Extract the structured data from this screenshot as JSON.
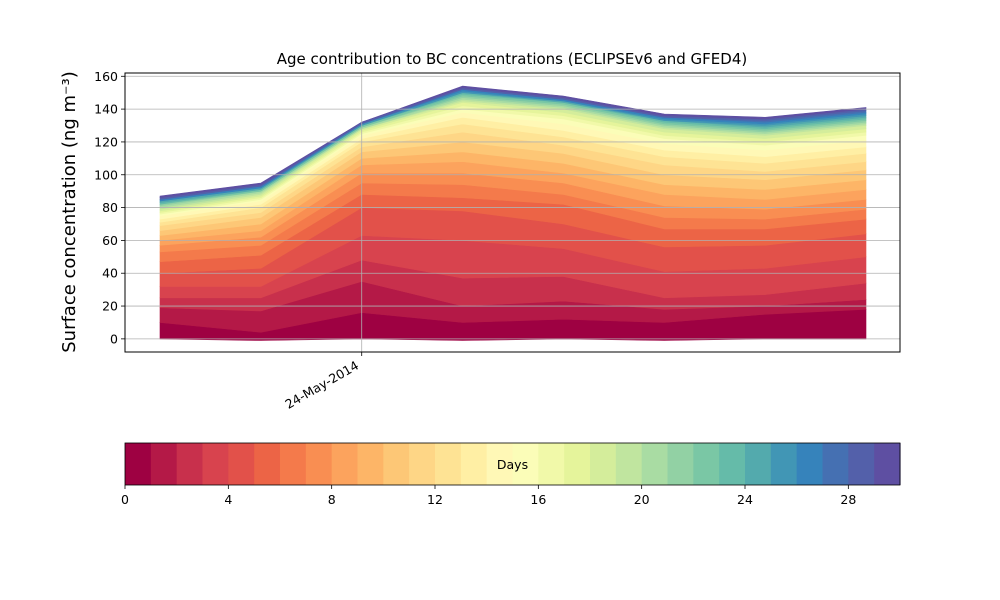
{
  "chart_data": {
    "type": "area",
    "title": "Age contribution to BC concentrations (ECLIPSEv6 and GFED4)",
    "ylabel": "Surface concentration (ng m⁻³)",
    "ylim": [
      -8,
      162
    ],
    "yticks": [
      0,
      20,
      40,
      60,
      80,
      100,
      120,
      140,
      160
    ],
    "xticks": [
      {
        "index": 2,
        "label": "24-May-2014"
      }
    ],
    "grid": true,
    "x": [
      0,
      1,
      2,
      3,
      4,
      5,
      6,
      7
    ],
    "stacked_boundaries": [
      [
        0,
        -1,
        0,
        -1,
        0,
        -1,
        0,
        0
      ],
      [
        10,
        4,
        16,
        10,
        12,
        10,
        15,
        18
      ],
      [
        19,
        17,
        35,
        20,
        23,
        18,
        20,
        24
      ],
      [
        25,
        25,
        48,
        37,
        38,
        25,
        27,
        34
      ],
      [
        32,
        32,
        63,
        60,
        55,
        41,
        43,
        50
      ],
      [
        40,
        43,
        80,
        78,
        70,
        56,
        57,
        64
      ],
      [
        47,
        51,
        88,
        86,
        82,
        67,
        67,
        73
      ],
      [
        53,
        57,
        95,
        94,
        88,
        74,
        73,
        79
      ],
      [
        57,
        62,
        101,
        101,
        95,
        81,
        79,
        85
      ],
      [
        60,
        66,
        106,
        108,
        101,
        88,
        85,
        91
      ],
      [
        63,
        70,
        110,
        114,
        107,
        94,
        91,
        97
      ],
      [
        66,
        74,
        114,
        120,
        113,
        100,
        97,
        103
      ],
      [
        69,
        77,
        117,
        126,
        118,
        106,
        102,
        108
      ],
      [
        71,
        80,
        120,
        131,
        123,
        111,
        107,
        113
      ],
      [
        73,
        82,
        122,
        135,
        127,
        115,
        111,
        117
      ],
      [
        75,
        84,
        124,
        138,
        131,
        119,
        115,
        121
      ],
      [
        76,
        85,
        125,
        140,
        134,
        122,
        118,
        124
      ],
      [
        77,
        86,
        126,
        142,
        136,
        124,
        120,
        126
      ],
      [
        78,
        87,
        127,
        144,
        138,
        126,
        122,
        128
      ],
      [
        79,
        88,
        128,
        145,
        140,
        128,
        124,
        130
      ],
      [
        80,
        89,
        128,
        146,
        141,
        129,
        125,
        131
      ],
      [
        81,
        90,
        129,
        147,
        142,
        130,
        126,
        132
      ],
      [
        82,
        90,
        129,
        148,
        143,
        131,
        127,
        133
      ],
      [
        82,
        91,
        130,
        149,
        144,
        132,
        128,
        134
      ],
      [
        83,
        91,
        130,
        150,
        144,
        133,
        129,
        135
      ],
      [
        84,
        92,
        130,
        150,
        145,
        133,
        130,
        136
      ],
      [
        84,
        92,
        131,
        151,
        145,
        134,
        131,
        137
      ],
      [
        85,
        93,
        131,
        152,
        146,
        135,
        132,
        138
      ],
      [
        85,
        93,
        131,
        152,
        146,
        135,
        133,
        139
      ],
      [
        86,
        94,
        132,
        153,
        147,
        136,
        134,
        140
      ],
      [
        87,
        95,
        132,
        154,
        148,
        137,
        135,
        141
      ]
    ],
    "colorbar": {
      "label": "Days",
      "min": 0,
      "max": 30,
      "ticks": [
        0,
        4,
        8,
        12,
        16,
        20,
        24,
        28
      ],
      "colors": [
        "#9e0142",
        "#b41947",
        "#c8304c",
        "#d8434e",
        "#e2514a",
        "#ec6446",
        "#f47a4b",
        "#f98e52",
        "#fca35d",
        "#fdb567",
        "#fdc776",
        "#fed686",
        "#fee394",
        "#ffefa4",
        "#fff8b6",
        "#fbfdb8",
        "#f1f9a9",
        "#e5f49b",
        "#d4ed9b",
        "#c0e59f",
        "#a9dca3",
        "#92d1a4",
        "#7ac7a5",
        "#65bba9",
        "#53aaad",
        "#4196b5",
        "#3683bb",
        "#4570b2",
        "#5360aa",
        "#5e4fa2"
      ]
    }
  }
}
